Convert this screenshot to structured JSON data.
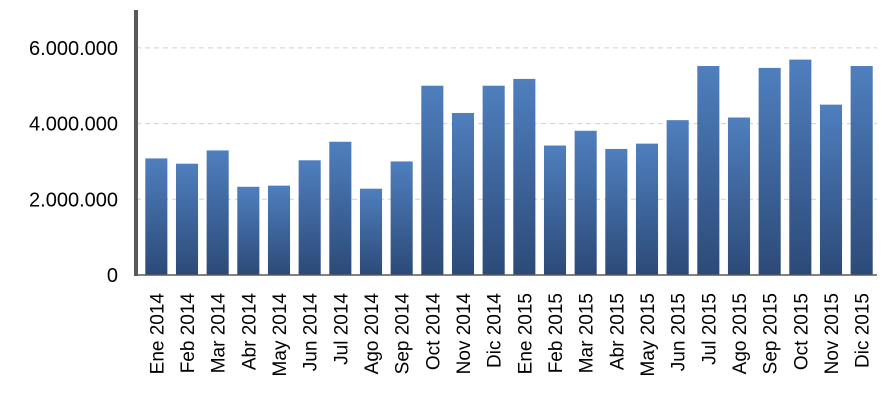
{
  "chart_data": {
    "type": "bar",
    "title": "",
    "xlabel": "",
    "ylabel": "",
    "ylim": [
      0,
      7000000
    ],
    "yticks": [
      0,
      2000000,
      4000000,
      6000000
    ],
    "ytick_labels": [
      "0",
      "2.000.000",
      "4.000.000",
      "6.000.000"
    ],
    "grid": true,
    "legend": "none",
    "categories": [
      "Ene 2014",
      "Feb 2014",
      "Mar 2014",
      "Abr 2014",
      "May 2014",
      "Jun 2014",
      "Jul 2014",
      "Ago 2014",
      "Sep 2014",
      "Oct 2014",
      "Nov 2014",
      "Dic 2014",
      "Ene 2015",
      "Feb 2015",
      "Mar 2015",
      "Abr 2015",
      "May 2015",
      "Jun 2015",
      "Jul 2015",
      "Ago 2015",
      "Sep 2015",
      "Oct 2015",
      "Nov 2015",
      "Dic 2015"
    ],
    "values": [
      3080000,
      2940000,
      3290000,
      2330000,
      2360000,
      3030000,
      3520000,
      2280000,
      3000000,
      5000000,
      4280000,
      5000000,
      5180000,
      3420000,
      3810000,
      3330000,
      3470000,
      4090000,
      5520000,
      4160000,
      5470000,
      5690000,
      4500000,
      5520000
    ],
    "colors": {
      "bar_top": "#4f7fbe",
      "bar_bottom": "#2c4a78",
      "axis": "#595959",
      "grid": "#cfcfcf"
    }
  }
}
